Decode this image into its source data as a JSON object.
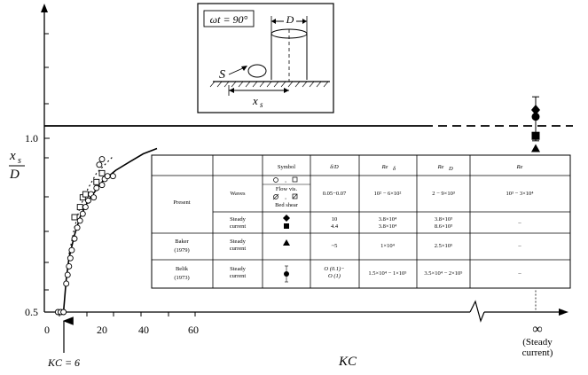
{
  "chart_data": {
    "type": "scatter",
    "title": "",
    "xlabel": "KC",
    "ylabel_main": "x",
    "ylabel_sub": "s",
    "ylabel_den": "D",
    "yscale": "log",
    "ylim": [
      0.5,
      1.4
    ],
    "xlim": [
      0,
      70
    ],
    "x_ticks": [
      "0",
      "20",
      "40",
      "60"
    ],
    "y_ticks": [
      "0.5",
      "1.0"
    ],
    "steady_tick": "∞",
    "steady_label_1": "(Steady",
    "steady_label_2": "current)",
    "kc_annotation": "KC = 6",
    "asymptote_y": 1.04,
    "series": [
      {
        "marker": "circle-open",
        "points": [
          [
            4,
            0.5
          ],
          [
            5,
            0.5
          ],
          [
            6,
            0.5
          ],
          [
            7,
            0.56
          ],
          [
            7.5,
            0.58
          ],
          [
            8,
            0.6
          ],
          [
            8.5,
            0.62
          ],
          [
            9,
            0.64
          ],
          [
            10,
            0.67
          ],
          [
            11,
            0.7
          ],
          [
            12,
            0.72
          ],
          [
            13,
            0.74
          ],
          [
            14,
            0.76
          ],
          [
            15,
            0.78
          ],
          [
            16,
            0.8
          ],
          [
            17,
            0.79
          ],
          [
            18,
            0.82
          ],
          [
            20,
            0.83
          ],
          [
            21,
            0.85
          ],
          [
            22,
            0.86
          ],
          [
            24,
            0.86
          ],
          [
            19,
            0.9
          ],
          [
            20,
            0.92
          ]
        ]
      },
      {
        "marker": "square-open",
        "points": [
          [
            10,
            0.73
          ],
          [
            12,
            0.76
          ],
          [
            13,
            0.79
          ],
          [
            14,
            0.8
          ],
          [
            18,
            0.84
          ],
          [
            20,
            0.87
          ]
        ]
      }
    ],
    "curve": [
      [
        6,
        0.5
      ],
      [
        7,
        0.57
      ],
      [
        8,
        0.62
      ],
      [
        10,
        0.68
      ],
      [
        12,
        0.73
      ],
      [
        15,
        0.78
      ],
      [
        20,
        0.84
      ],
      [
        25,
        0.88
      ],
      [
        30,
        0.91
      ],
      [
        35,
        0.94
      ],
      [
        40,
        0.96
      ]
    ],
    "dotted_curve": [
      [
        8,
        0.63
      ],
      [
        10,
        0.7
      ],
      [
        12,
        0.76
      ],
      [
        15,
        0.82
      ],
      [
        18,
        0.87
      ],
      [
        22,
        0.91
      ],
      [
        24,
        0.93
      ]
    ],
    "steady_points": [
      {
        "marker": "diamond",
        "y": 1.12
      },
      {
        "marker": "circle",
        "y": 1.09
      },
      {
        "marker": "square",
        "y": 1.01
      },
      {
        "marker": "triangle",
        "y": 0.96
      }
    ],
    "steady_errorbar": [
      0.99,
      1.18
    ]
  },
  "inset": {
    "angle": "ωt = 90°",
    "D": "D",
    "S": "S",
    "xs": "x",
    "xs_sub": "s"
  },
  "table": {
    "headers": [
      "Symbol",
      "δ/D",
      "Re",
      "Re",
      "Re"
    ],
    "header_subs": [
      "",
      "",
      "δ",
      "D",
      ""
    ],
    "rows": [
      {
        "study": "Present",
        "flow": "Waves",
        "symbol_text": "Flow  vis.",
        "symbol_text2": "Bed  shear",
        "delta": "0.05−0.07",
        "re_delta": "10² − 6×10²",
        "re_d": "2 − 9×10³",
        "re": "10³ − 3×10⁴"
      },
      {
        "study": "",
        "flow": "Steady current",
        "delta_a": "10",
        "delta_b": "4.4",
        "re_delta_a": "3.8×10⁴",
        "re_delta_b": "3.8×10⁴",
        "re_d_a": "3.8×10³",
        "re_d_b": "8.6×10³",
        "re": "–"
      },
      {
        "study": "Baker",
        "study2": "(1979)",
        "flow": "Steady current",
        "delta": "~5",
        "re_delta": "1×10⁴",
        "re_d": "2.5×10⁵",
        "re": "–"
      },
      {
        "study": "Belik",
        "study2": "(1973)",
        "flow": "Steady current",
        "delta_a": "O (0.1)−",
        "delta_b": "O (1)",
        "re_delta": "1.5×10⁴ − 1×10⁵",
        "re_d": "3.5×10⁴ − 2×10⁵",
        "re": "–"
      }
    ]
  }
}
